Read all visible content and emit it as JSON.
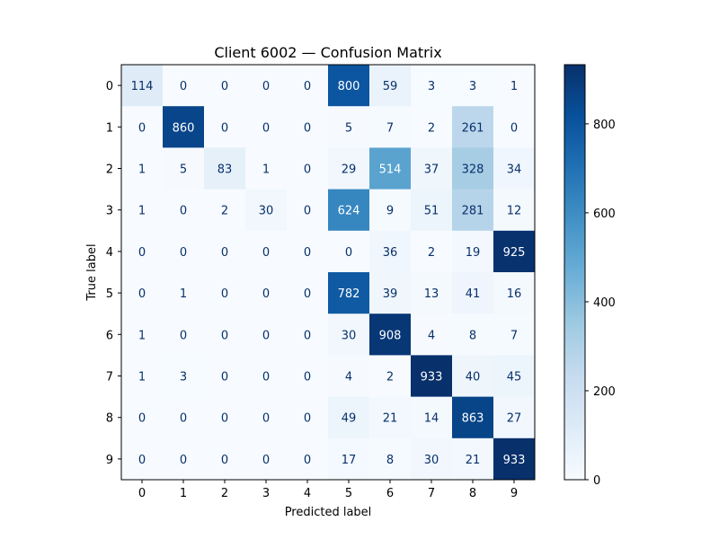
{
  "chart_data": {
    "type": "heatmap",
    "title": "Client 6002 — Confusion Matrix",
    "xlabel": "Predicted label",
    "ylabel": "True label",
    "x_categories": [
      "0",
      "1",
      "2",
      "3",
      "4",
      "5",
      "6",
      "7",
      "8",
      "9"
    ],
    "y_categories": [
      "0",
      "1",
      "2",
      "3",
      "4",
      "5",
      "6",
      "7",
      "8",
      "9"
    ],
    "matrix": [
      [
        114,
        0,
        0,
        0,
        0,
        800,
        59,
        3,
        3,
        1
      ],
      [
        0,
        860,
        0,
        0,
        0,
        5,
        7,
        2,
        261,
        0
      ],
      [
        1,
        5,
        83,
        1,
        0,
        29,
        514,
        37,
        328,
        34
      ],
      [
        1,
        0,
        2,
        30,
        0,
        624,
        9,
        51,
        281,
        12
      ],
      [
        0,
        0,
        0,
        0,
        0,
        0,
        36,
        2,
        19,
        925
      ],
      [
        0,
        1,
        0,
        0,
        0,
        782,
        39,
        13,
        41,
        16
      ],
      [
        1,
        0,
        0,
        0,
        0,
        30,
        908,
        4,
        8,
        7
      ],
      [
        1,
        3,
        0,
        0,
        0,
        4,
        2,
        933,
        40,
        45
      ],
      [
        0,
        0,
        0,
        0,
        0,
        49,
        21,
        14,
        863,
        27
      ],
      [
        0,
        0,
        0,
        0,
        0,
        17,
        8,
        30,
        21,
        933
      ]
    ],
    "colormap": "Blues",
    "colorbar": {
      "range": [
        0,
        933
      ],
      "ticks": [
        0,
        200,
        400,
        600,
        800
      ],
      "tick_labels": [
        "0",
        "200",
        "400",
        "600",
        "800"
      ]
    },
    "grid": false
  }
}
